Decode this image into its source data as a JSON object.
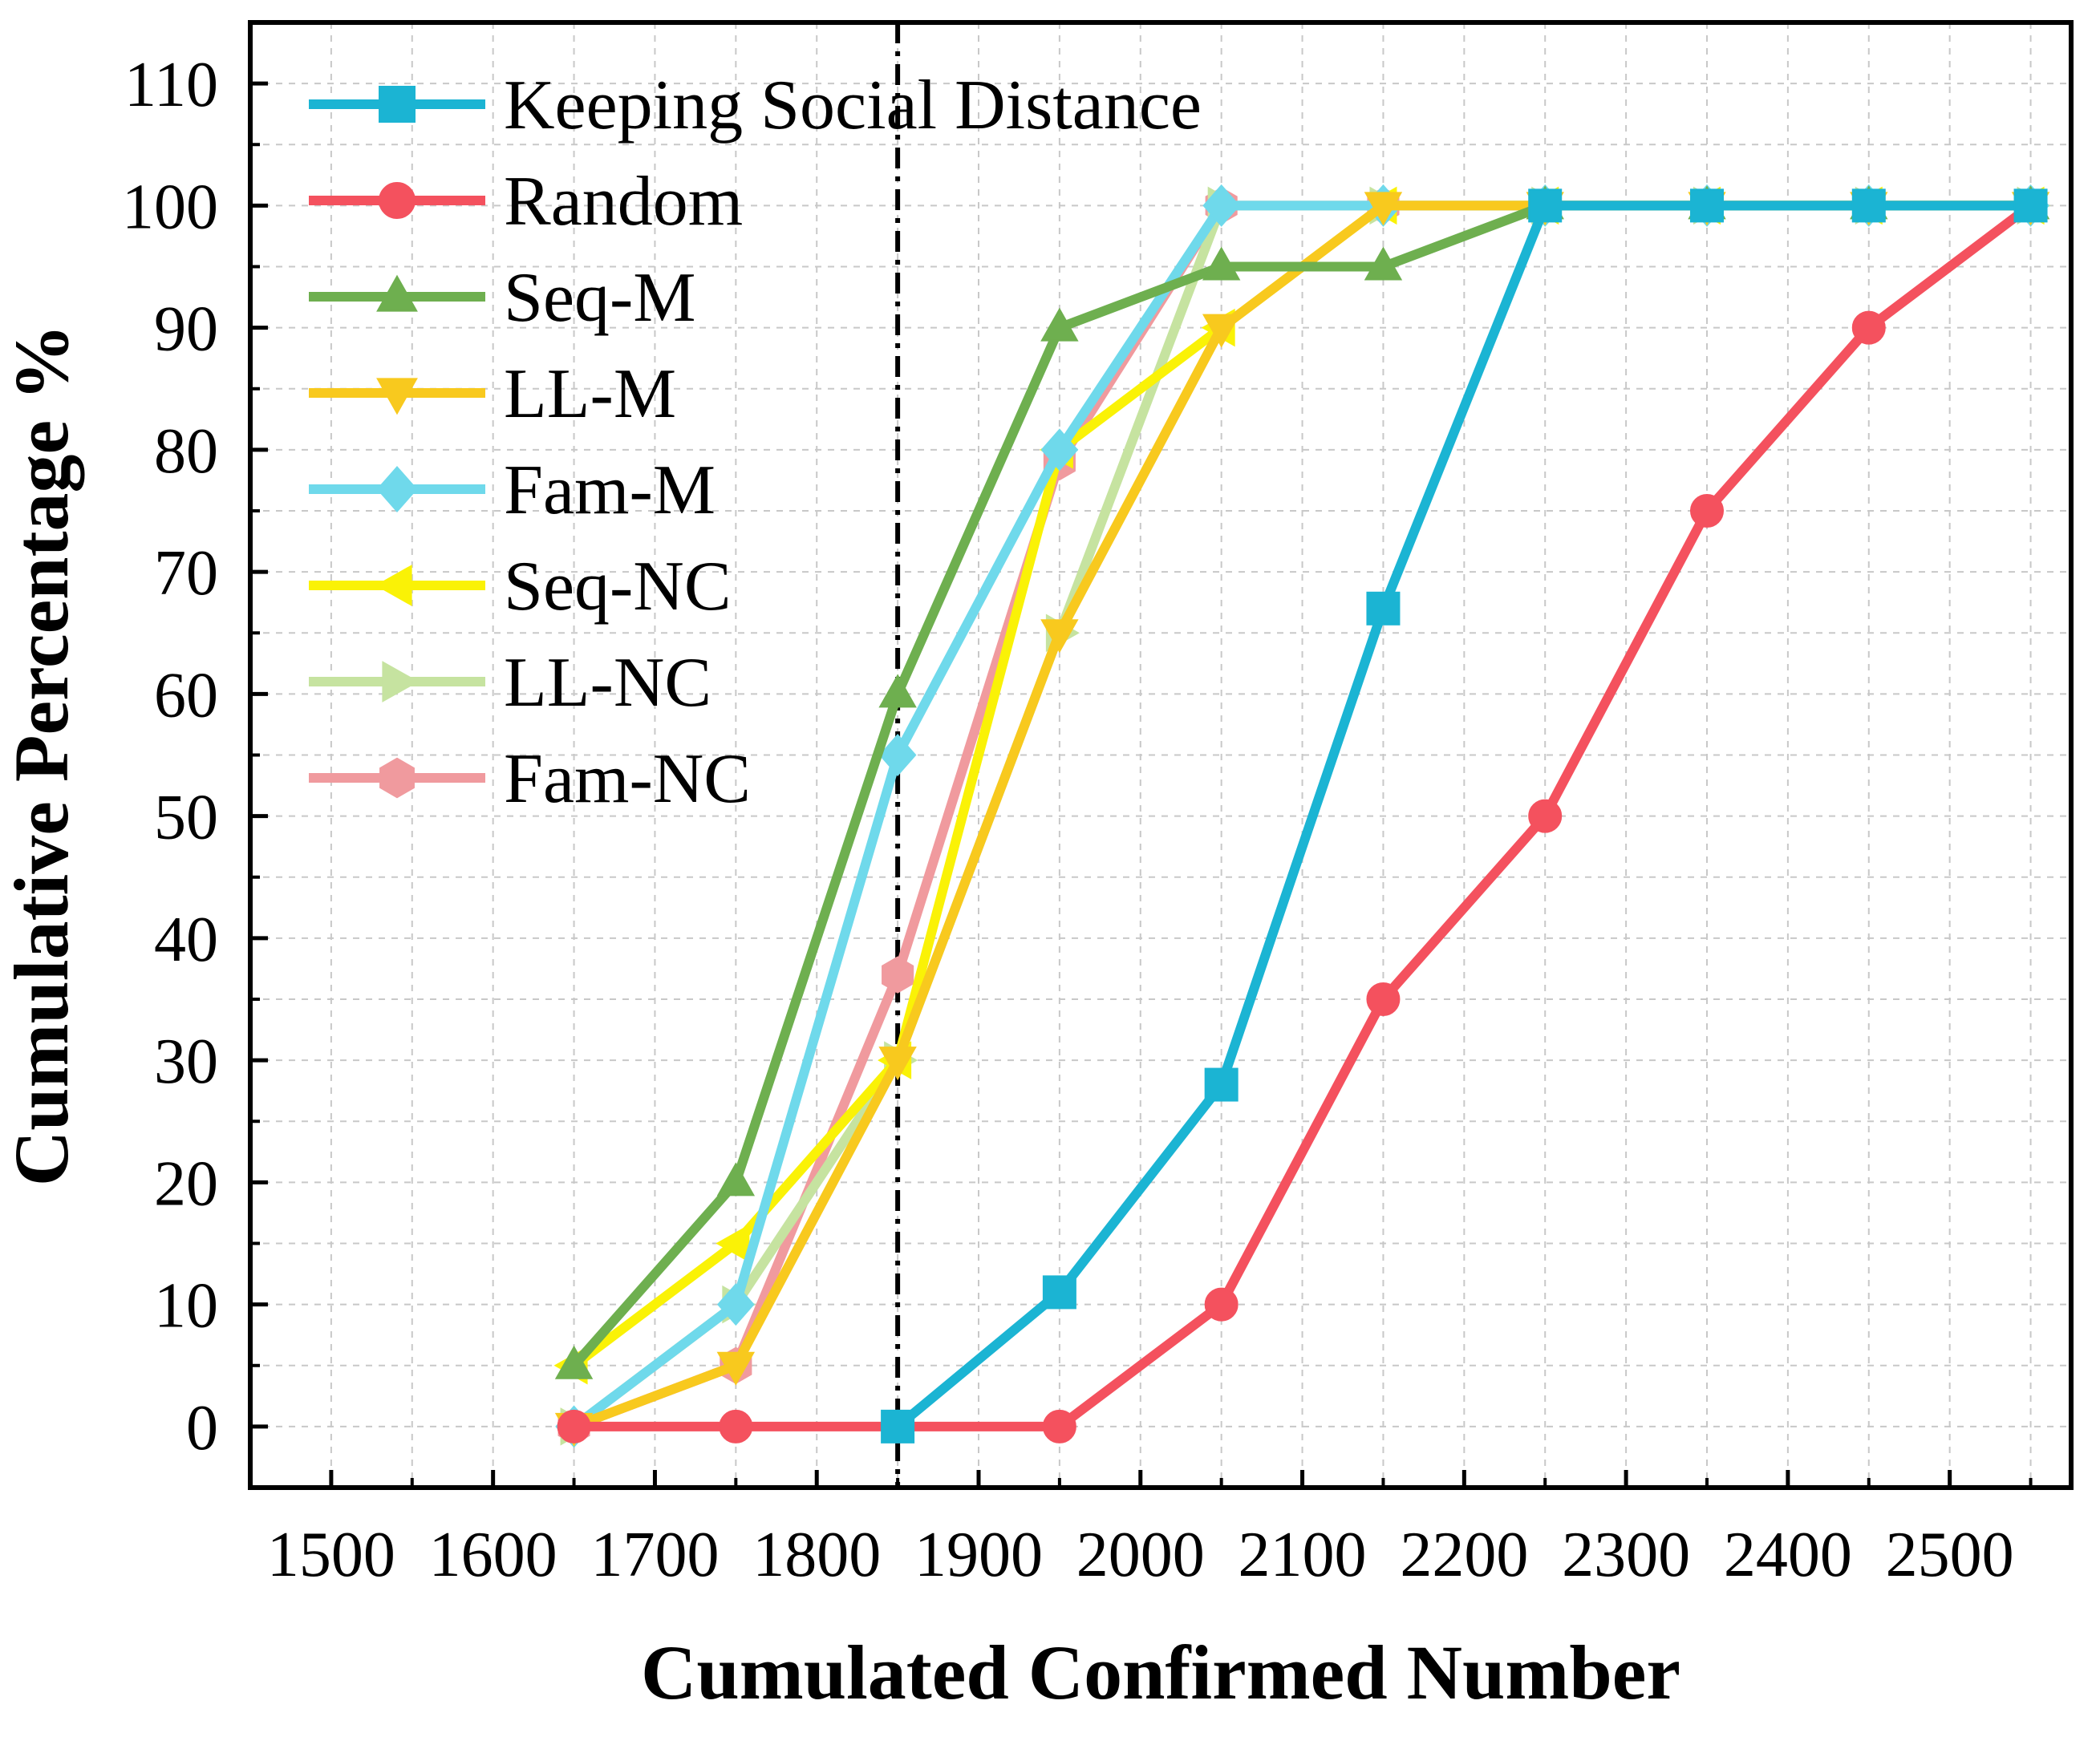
{
  "chart_data": {
    "type": "line",
    "title": "",
    "xlabel": "Cumulated Confirmed Number",
    "ylabel": "Cumulative Percentage %",
    "xlim": [
      1450,
      2575
    ],
    "ylim": [
      -5,
      115
    ],
    "xticks": [
      1500,
      1600,
      1700,
      1800,
      1900,
      2000,
      2100,
      2200,
      2300,
      2400,
      2500
    ],
    "yticks": [
      0,
      10,
      20,
      30,
      40,
      50,
      60,
      70,
      80,
      90,
      100,
      110
    ],
    "grid": true,
    "legend_position": "top-left",
    "reference_line": {
      "x": 1850,
      "style": "dash-dot",
      "color": "#000000"
    },
    "series": [
      {
        "name": "Keeping Social Distance",
        "color": "#1BB4D3",
        "marker": "square",
        "x": [
          1850,
          1950,
          2050,
          2150,
          2250,
          2350,
          2450,
          2550
        ],
        "y": [
          0,
          11,
          28,
          67,
          100,
          100,
          100,
          100
        ]
      },
      {
        "name": "Random",
        "color": "#F4515E",
        "marker": "circle",
        "x": [
          1650,
          1750,
          1850,
          1950,
          2050,
          2150,
          2250,
          2350,
          2450,
          2550
        ],
        "y": [
          0,
          0,
          0,
          0,
          10,
          35,
          50,
          75,
          90,
          100
        ]
      },
      {
        "name": "Seq-M",
        "color": "#6EAF4F",
        "marker": "triangle-up",
        "x": [
          1650,
          1750,
          1850,
          1950,
          2050,
          2150,
          2250,
          2350,
          2450,
          2550
        ],
        "y": [
          5,
          20,
          60,
          90,
          95,
          95,
          100,
          100,
          100,
          100
        ]
      },
      {
        "name": "LL-M",
        "color": "#F8C91E",
        "marker": "triangle-down",
        "x": [
          1650,
          1750,
          1850,
          1950,
          2050,
          2150,
          2250,
          2350,
          2450,
          2550
        ],
        "y": [
          0,
          5,
          30,
          65,
          90,
          100,
          100,
          100,
          100,
          100
        ]
      },
      {
        "name": "Fam-M",
        "color": "#6FD9EB",
        "marker": "diamond",
        "x": [
          1650,
          1750,
          1850,
          1950,
          2050,
          2150,
          2250,
          2350,
          2450,
          2550
        ],
        "y": [
          0,
          10,
          55,
          80,
          100,
          100,
          100,
          100,
          100,
          100
        ]
      },
      {
        "name": "Seq-NC",
        "color": "#FAF206",
        "marker": "triangle-left",
        "x": [
          1650,
          1750,
          1850,
          1950,
          2050,
          2150,
          2250,
          2350,
          2450,
          2550
        ],
        "y": [
          5,
          15,
          30,
          80,
          90,
          100,
          100,
          100,
          100,
          100
        ]
      },
      {
        "name": "LL-NC",
        "color": "#C6E3A0",
        "marker": "triangle-right",
        "x": [
          1650,
          1750,
          1850,
          1950,
          2050,
          2150,
          2250,
          2350,
          2450,
          2550
        ],
        "y": [
          0,
          10,
          30,
          65,
          100,
          100,
          100,
          100,
          100,
          100
        ]
      },
      {
        "name": "Fam-NC",
        "color": "#F09A9E",
        "marker": "hexagon",
        "x": [
          1650,
          1750,
          1850,
          1950,
          2050,
          2150,
          2250,
          2350,
          2450,
          2550
        ],
        "y": [
          0,
          5,
          37,
          79,
          100,
          100,
          100,
          100,
          100,
          100
        ]
      }
    ]
  }
}
